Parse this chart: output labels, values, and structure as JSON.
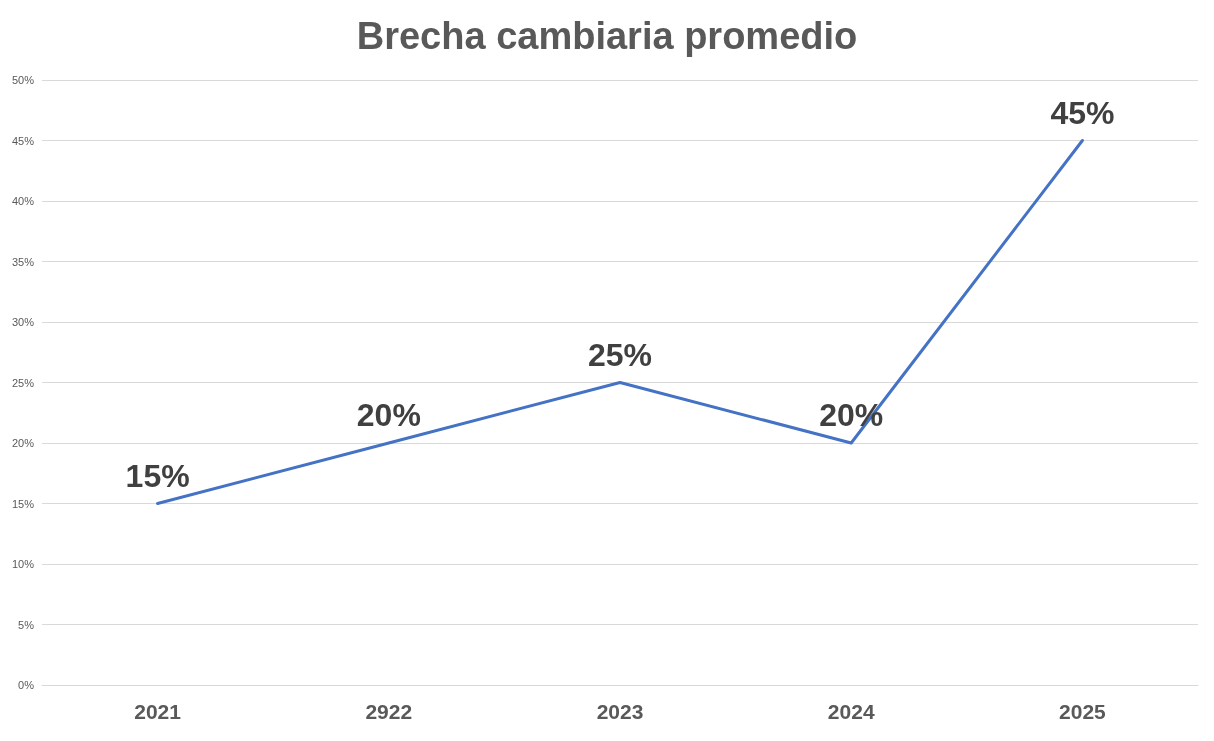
{
  "chart_data": {
    "type": "line",
    "title": "Brecha cambiaria promedio",
    "categories": [
      "2021",
      "2922",
      "2023",
      "2024",
      "2025"
    ],
    "series": [
      {
        "color": "#4472c4",
        "values": [
          15,
          20,
          25,
          20,
          45
        ],
        "value_labels": [
          "15%",
          "20%",
          "25%",
          "20%",
          "45%"
        ]
      }
    ],
    "ylim": [
      0,
      50
    ],
    "yticks": [
      {
        "value": 0,
        "label": "0%"
      },
      {
        "value": 5,
        "label": "5%"
      },
      {
        "value": 10,
        "label": "10%"
      },
      {
        "value": 15,
        "label": "15%"
      },
      {
        "value": 20,
        "label": "20%"
      },
      {
        "value": 25,
        "label": "25%"
      },
      {
        "value": 30,
        "label": "30%"
      },
      {
        "value": 35,
        "label": "35%"
      },
      {
        "value": 40,
        "label": "40%"
      },
      {
        "value": 45,
        "label": "45%"
      },
      {
        "value": 50,
        "label": "50%"
      }
    ],
    "grid": "y",
    "marker": "none",
    "line_style": "solid"
  }
}
